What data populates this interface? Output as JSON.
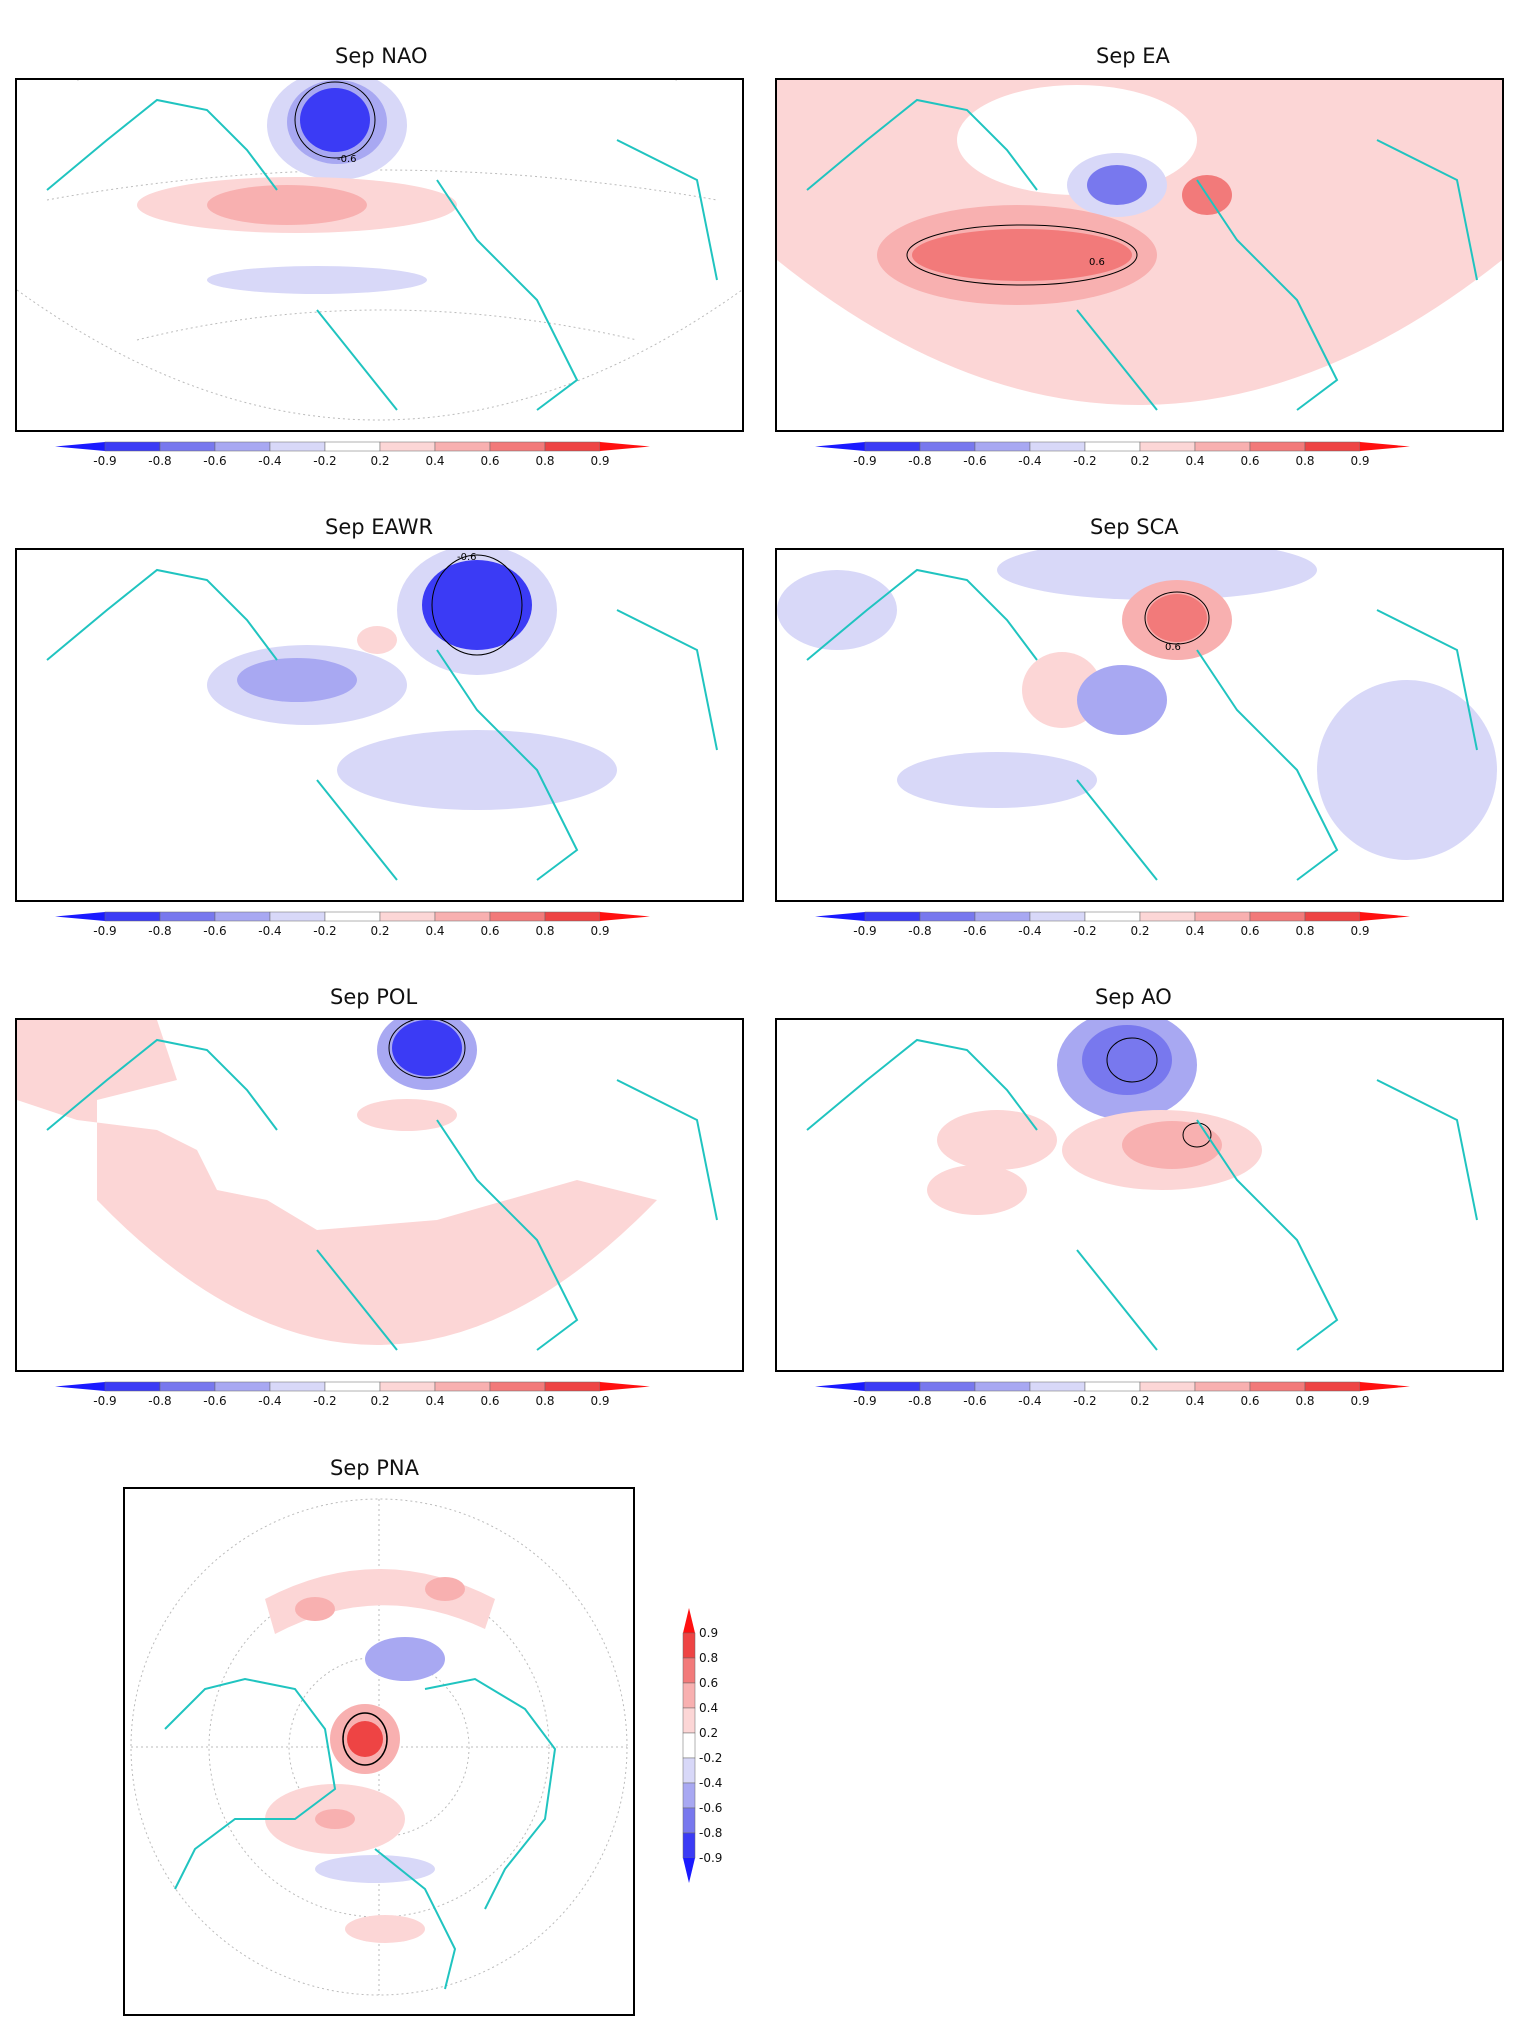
{
  "colorbar": {
    "labels": [
      "-0.9",
      "-0.8",
      "-0.6",
      "-0.4",
      "-0.2",
      "0.2",
      "0.4",
      "0.6",
      "0.8",
      "0.9"
    ],
    "colors": {
      "neg_extreme": "#1a1aff",
      "neg_strong": "#3b3bf5",
      "neg_mid": "#7878ee",
      "neg_weak": "#a8a8f2",
      "neg_light": "#d8d8f8",
      "pos_light": "#fcd6d6",
      "pos_weak": "#f8b0b0",
      "pos_mid": "#f27a7a",
      "pos_strong": "#ee4444",
      "pos_extreme": "#ff1010"
    },
    "coast_color": "#20c4c0"
  },
  "panels": [
    {
      "title": "Sep  NAO",
      "contour_label": "-0.6"
    },
    {
      "title": "Sep  EA",
      "contour_label": "0.6"
    },
    {
      "title": "Sep  EAWR",
      "contour_label": "-0.6"
    },
    {
      "title": "Sep  SCA",
      "contour_label": "0.6"
    },
    {
      "title": "Sep  POL",
      "contour_label": ""
    },
    {
      "title": "Sep  AO",
      "contour_label": ""
    },
    {
      "title": "Sep  PNA",
      "contour_label": ""
    }
  ]
}
